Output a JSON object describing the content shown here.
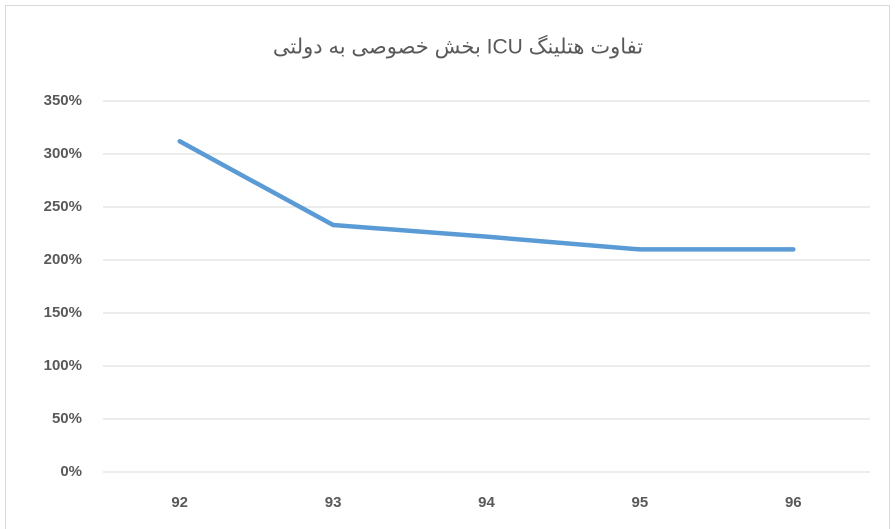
{
  "chart_data": {
    "type": "line",
    "title": "تفاوت هتلینگ ICU بخش خصوصی به دولتی",
    "categories": [
      "92",
      "93",
      "94",
      "95",
      "96"
    ],
    "values": [
      312,
      233,
      222,
      210,
      210
    ],
    "color": "#5b9bd5",
    "ylim": [
      0,
      350
    ],
    "yticks": [
      {
        "value": 0,
        "label": "0%"
      },
      {
        "value": 50,
        "label": "50%"
      },
      {
        "value": 100,
        "label": "100%"
      },
      {
        "value": 150,
        "label": "150%"
      },
      {
        "value": 200,
        "label": "200%"
      },
      {
        "value": 250,
        "label": "250%"
      },
      {
        "value": 300,
        "label": "300%"
      },
      {
        "value": 350,
        "label": "350%"
      }
    ],
    "grid": true
  }
}
